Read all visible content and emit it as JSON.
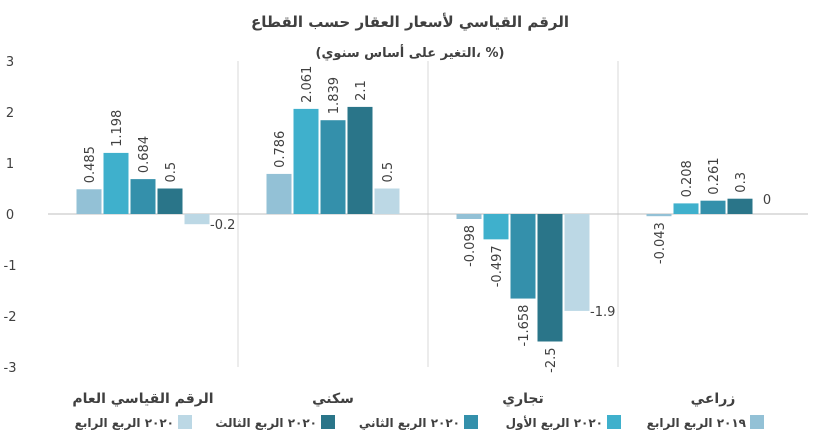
{
  "chart_data": {
    "type": "bar",
    "title": "الرقم القياسي لأسعار العقار حسب القطاع",
    "subtitle": "(التغير على أساس سنوي، %)",
    "categories": [
      "الرقم القياسي العام",
      "سكني",
      "تجاري",
      "زراعي"
    ],
    "series": [
      {
        "name": "٢٠١٩ الربع الرابع",
        "color": "#93c1d6",
        "values": [
          0.485,
          0.786,
          -0.098,
          -0.043
        ],
        "labels": [
          "0.485",
          "0.786",
          "-0.098",
          "-0.043"
        ]
      },
      {
        "name": "٢٠٢٠ الربع الأول",
        "color": "#3fb0cc",
        "values": [
          1.198,
          2.061,
          -0.497,
          0.208
        ],
        "labels": [
          "1.198",
          "2.061",
          "-0.497",
          "0.208"
        ]
      },
      {
        "name": "٢٠٢٠ الربع الثاني",
        "color": "#3490ab",
        "values": [
          0.684,
          1.839,
          -1.658,
          0.261
        ],
        "labels": [
          "0.684",
          "1.839",
          "-1.658",
          "0.261"
        ]
      },
      {
        "name": "٢٠٢٠ الربع الثالث",
        "color": "#2a7589",
        "values": [
          0.5,
          2.1,
          -2.5,
          0.3
        ],
        "labels": [
          "0.5",
          "2.1",
          "-2.5",
          "0.3"
        ]
      },
      {
        "name": "٢٠٢٠ الربع الرابع",
        "color": "#bcd8e5",
        "values": [
          -0.2,
          0.5,
          -1.9,
          0
        ],
        "labels": [
          "-0.2",
          "0.5",
          "-1.9",
          "0"
        ]
      }
    ],
    "ylim": [
      -3,
      3
    ],
    "yticks": [
      "-3",
      "-2",
      "-1",
      "0",
      "1",
      "2",
      "3"
    ],
    "grid": "vertical-category-separators",
    "legend": "bottom"
  }
}
